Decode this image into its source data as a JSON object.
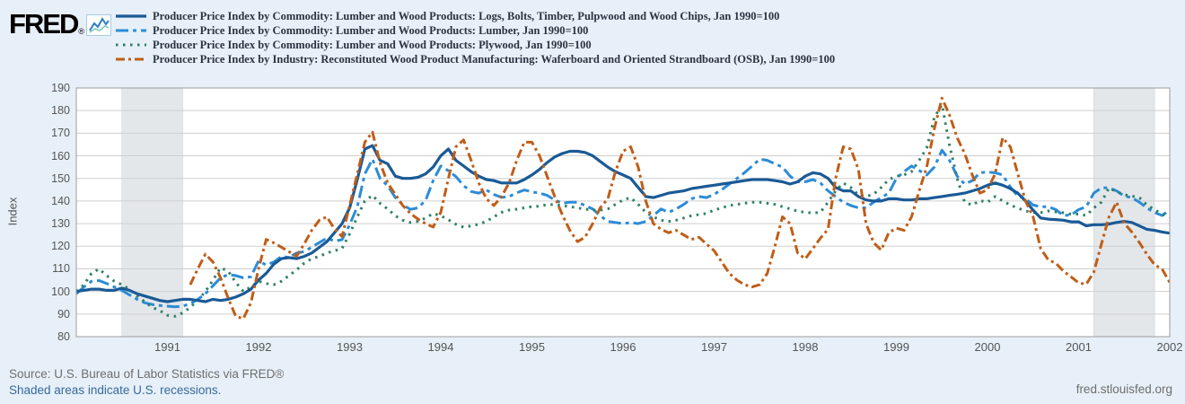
{
  "header": {
    "logo_text": "FRED",
    "logo_reg": "®",
    "sparkline_icon": "line-chart-sparkline"
  },
  "footer": {
    "source_line": "Source: U.S. Bureau of Labor Statistics via FRED®",
    "recession_note": "Shaded areas indicate U.S. recessions.",
    "site_url": "fred.stlouisfed.org"
  },
  "colors": {
    "background": "#e7f0f8",
    "plot_background": "#ffffff",
    "gridline": "#cfcfcf",
    "plot_border": "#9b9b9b",
    "recession_band": "#e3e7ea",
    "axis_text": "#555555",
    "legend_text": "#2a3440",
    "series_logs": "#1a5a96",
    "series_lumber": "#2b8cd7",
    "series_plywood": "#2e8068",
    "series_osb": "#c05d17"
  },
  "chart_data": {
    "type": "line",
    "title": "",
    "xlabel": "",
    "ylabel": "Index",
    "ylim": [
      80,
      190
    ],
    "ytick_step": 10,
    "xlim": [
      1990.0,
      2002.0
    ],
    "xticks": [
      1991,
      1992,
      1993,
      1994,
      1995,
      1996,
      1997,
      1998,
      1999,
      2000,
      2001,
      2002
    ],
    "grid": "horizontal-only",
    "legend_position": "top",
    "frequency": "monthly",
    "recession_bands": [
      {
        "start": 1990.5,
        "end": 1991.1667
      },
      {
        "start": 2001.1667,
        "end": 2001.8333
      }
    ],
    "series": [
      {
        "name": "Producer Price Index by Commodity: Lumber and Wood Products: Logs, Bolts, Timber, Pulpwood and Wood Chips, Jan 1990=100",
        "short_name": "Logs, Bolts, Timber, Pulpwood and Wood Chips",
        "color": "#1a5a96",
        "dash": "solid",
        "width": 3.2,
        "start": "1990-01",
        "values": [
          100,
          100.5,
          101,
          101,
          100.5,
          100.5,
          101.5,
          100.5,
          99,
          98,
          97,
          96,
          95.5,
          96,
          96.5,
          96.5,
          96,
          95.5,
          96.5,
          96,
          96.5,
          97.5,
          99,
          101,
          105,
          108,
          112,
          114.5,
          115,
          114.5,
          115.5,
          117,
          119.5,
          122,
          126,
          130,
          137,
          149.5,
          163,
          164.5,
          158,
          156.5,
          151,
          150,
          150,
          150.5,
          152,
          155,
          160,
          163,
          158,
          155.5,
          153,
          151,
          149.5,
          149,
          148,
          148,
          148,
          149.5,
          151.5,
          154,
          157,
          159.5,
          161,
          162,
          162,
          161.5,
          160,
          157.5,
          155,
          153,
          151.5,
          150,
          146,
          142,
          141.5,
          142.5,
          143.5,
          144,
          144.5,
          145.5,
          146,
          146.5,
          147,
          147.5,
          148,
          148.5,
          149,
          149.5,
          149.5,
          149.5,
          149,
          148.5,
          147.5,
          148.5,
          151,
          152.5,
          152,
          150,
          146,
          144.5,
          144.5,
          142,
          140.5,
          140,
          140,
          141,
          141,
          140.5,
          140.5,
          141,
          141,
          141.5,
          142,
          142.5,
          143,
          143.5,
          144.5,
          145.5,
          147,
          148,
          147,
          145.5,
          143.5,
          140,
          136,
          132.5,
          132,
          131.8,
          131.5,
          130.8,
          130.8,
          129,
          129.5,
          129.5,
          129.8,
          130.5,
          131,
          130.5,
          129,
          127.5,
          127,
          126.3,
          125.8
        ]
      },
      {
        "name": "Producer Price Index by Commodity: Lumber and Wood Products: Lumber, Jan 1990=100",
        "short_name": "Lumber",
        "color": "#2b8cd7",
        "dash": "long-dash-dot",
        "width": 3,
        "start": "1990-01",
        "values": [
          99,
          102,
          104.5,
          104.8,
          103.5,
          102,
          100.5,
          98.5,
          96.5,
          95,
          94.2,
          93.8,
          93.5,
          93.2,
          93.5,
          94.5,
          96.5,
          99,
          102.5,
          106,
          107.5,
          107,
          106,
          106.5,
          113.5,
          111.7,
          113,
          115.5,
          115,
          117,
          117.6,
          119.6,
          121.6,
          123.6,
          122.3,
          122.9,
          129.5,
          137.5,
          152,
          158.5,
          150,
          146.8,
          141.6,
          138.3,
          136.3,
          137,
          140.3,
          149,
          155.5,
          153.4,
          150.8,
          146.8,
          144.2,
          143.5,
          144.9,
          142.9,
          141.6,
          142,
          143.6,
          144.9,
          144,
          143.5,
          142.5,
          140.5,
          139,
          139.5,
          139.5,
          138,
          136.5,
          133.5,
          131,
          130.5,
          130,
          130.5,
          130,
          131,
          133.5,
          136.5,
          135,
          136.5,
          138.5,
          141,
          142,
          141.5,
          143,
          145,
          147.5,
          150,
          152.5,
          155.5,
          158.5,
          158,
          156.5,
          155,
          151,
          148.5,
          148.5,
          149.5,
          148,
          144.5,
          142,
          139.5,
          138,
          137,
          137,
          139.5,
          141.5,
          143.5,
          150,
          153,
          155.5,
          153.5,
          151.5,
          155,
          162.5,
          158,
          151,
          147.5,
          149,
          152.5,
          152.8,
          152.5,
          151.5,
          146.2,
          142.2,
          141.1,
          138.2,
          137.5,
          137.5,
          136.2,
          133.6,
          133.8,
          136.2,
          137.5,
          143.5,
          145.8,
          145.8,
          144.5,
          142.2,
          141.5,
          139.5,
          136.9,
          134.9,
          133.6,
          136
        ]
      },
      {
        "name": "Producer Price Index by Commodity: Lumber and Wood Products: Plywood, Jan 1990=100",
        "short_name": "Plywood",
        "color": "#2e8068",
        "dash": "dotted",
        "width": 3,
        "start": "1990-01",
        "values": [
          100,
          103,
          108,
          110,
          107,
          104.5,
          103,
          101,
          98,
          95.5,
          93,
          91.5,
          89.5,
          89,
          90.5,
          93,
          96,
          100,
          105,
          110.5,
          109,
          104,
          100,
          102,
          104.5,
          103.5,
          103,
          104.5,
          107,
          109.5,
          112.5,
          114.5,
          115.5,
          117,
          118,
          119,
          125.5,
          133,
          140,
          142.5,
          139,
          136.5,
          133.5,
          131.5,
          130.5,
          131,
          132.5,
          134.5,
          133.5,
          131.7,
          129.7,
          128.4,
          129,
          129.7,
          131,
          133,
          135,
          136,
          136.4,
          137,
          137.5,
          137.7,
          138.4,
          138.4,
          138,
          137.5,
          137,
          136.4,
          136,
          136,
          136.5,
          138.5,
          140.5,
          141.5,
          138.5,
          135,
          133,
          131.5,
          131,
          131.5,
          132.5,
          133.5,
          134,
          134.5,
          136,
          137,
          138,
          138.5,
          139,
          139.5,
          139.5,
          139,
          138.5,
          137.5,
          136.5,
          135.5,
          135,
          134.7,
          135,
          139.5,
          144.5,
          148,
          146,
          142.7,
          142,
          143,
          146,
          149.5,
          151,
          151.5,
          153,
          158,
          163.4,
          177,
          182.6,
          164.7,
          150,
          139.5,
          138.2,
          140.2,
          139.5,
          142,
          140.1,
          138.2,
          136.9,
          135.6,
          134.9,
          134.9,
          135.6,
          135.2,
          134.8,
          134.2,
          134.2,
          133.6,
          136.9,
          139.5,
          145.8,
          144.1,
          142.8,
          142.2,
          141.5,
          138.2,
          136.2,
          134.2,
          133
        ]
      },
      {
        "name": "Producer Price Index by Industry: Reconstituted Wood Product Manufacturing: Waferboard and Oriented Strandboard (OSB), Jan 1990=100",
        "short_name": "Waferboard and Oriented Strandboard (OSB)",
        "color": "#c05d17",
        "dash": "dash-dot",
        "width": 3,
        "start": "1991-04",
        "values": [
          103,
          110,
          116.5,
          113,
          106,
          97,
          89,
          88,
          95,
          110,
          123,
          121.5,
          119.6,
          117.6,
          115.6,
          121,
          127,
          131.5,
          133,
          127.6,
          124.3,
          138,
          152,
          166,
          170.5,
          157,
          148,
          143,
          138,
          134.5,
          132,
          130,
          128.5,
          135,
          150,
          164,
          167,
          158,
          148,
          141,
          138,
          142,
          148,
          158,
          166,
          166,
          160,
          151,
          142,
          134,
          127,
          122,
          124,
          130,
          137,
          141,
          153,
          162,
          164,
          155,
          140,
          130,
          127.5,
          126,
          127,
          125,
          123,
          124,
          121,
          118,
          113,
          108,
          105,
          103,
          102,
          103,
          108,
          120,
          133,
          130,
          117,
          114.4,
          119,
          123.6,
          127.5,
          150,
          164,
          163,
          154,
          130,
          121.6,
          118.3,
          126,
          128,
          127,
          133,
          144.5,
          155,
          172,
          185.5,
          178,
          168,
          161,
          151.5,
          143.5,
          145,
          152,
          168,
          164,
          152,
          140,
          133,
          119,
          114,
          112.5,
          109,
          106.5,
          103.8,
          103.2,
          108.5,
          121,
          132.9,
          139.5,
          130.2,
          126.3,
          121.6,
          116.4,
          111.8,
          109.9,
          104
        ]
      }
    ]
  }
}
